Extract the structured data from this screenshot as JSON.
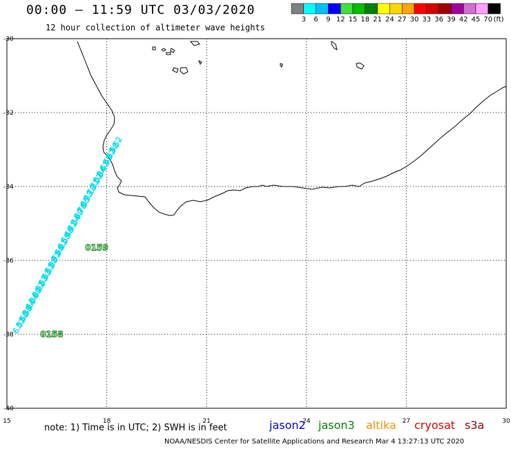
{
  "header": {
    "title": "00:00 – 11:59 UTC 03/03/2020",
    "subtitle": "12 hour collection of altimeter wave heights"
  },
  "colorbar": {
    "colors": [
      "#808080",
      "#00ffff",
      "#00bfff",
      "#0000ff",
      "#40e040",
      "#00c000",
      "#008000",
      "#ffff00",
      "#ffd700",
      "#ffa500",
      "#ff0000",
      "#d40000",
      "#a00000",
      "#a000a0",
      "#d070d0",
      "#ffa0ff",
      "#000000"
    ],
    "ticks": [
      "3",
      "6",
      "9",
      "12",
      "15",
      "18",
      "21",
      "24",
      "27",
      "30",
      "33",
      "36",
      "39",
      "42",
      "45",
      "70"
    ],
    "unit": "(ft)"
  },
  "axes": {
    "x_ticks": [
      {
        "lon": 15,
        "label": "15"
      },
      {
        "lon": 18,
        "label": "18"
      },
      {
        "lon": 21,
        "label": "21"
      },
      {
        "lon": 24,
        "label": "24"
      },
      {
        "lon": 27,
        "label": "27"
      },
      {
        "lon": 30,
        "label": "30"
      }
    ],
    "y_ticks": [
      {
        "lat": -30,
        "label": "-30"
      },
      {
        "lat": -32,
        "label": "-32"
      },
      {
        "lat": -34,
        "label": "-34"
      },
      {
        "lat": -36,
        "label": "-36"
      },
      {
        "lat": -38,
        "label": "-38"
      },
      {
        "lat": -40,
        "label": "-40"
      }
    ],
    "lon_range": [
      15,
      30
    ],
    "lat_range": [
      -40,
      -30
    ]
  },
  "track": {
    "color": "#00d8e8",
    "labels": [
      "6.07",
      "5.66",
      "5.38",
      "5.24",
      "6.04",
      "5.39",
      "6.02",
      "5.63",
      "5.83",
      "5.51",
      "5.86",
      "5.72",
      "5.96",
      "6.21",
      "6.55",
      "6.48",
      "6.71",
      "6.34",
      "6.89",
      "6.76",
      "7.05",
      "6.93",
      "7.18",
      "7.31",
      "7.02",
      "6.84",
      "6.61",
      "6.45",
      "6.37",
      "5.98",
      "5.52"
    ],
    "times": [
      {
        "text": "0158",
        "color": "#008000",
        "lon": 16.0,
        "lat": -38.0
      },
      {
        "text": "0159",
        "color": "#008000",
        "lon": 17.35,
        "lat": -35.65
      }
    ]
  },
  "legend": {
    "note": "note: 1) Time is in UTC; 2) SWH is in feet",
    "satellites": [
      {
        "name": "jason2",
        "color": "#0000cc"
      },
      {
        "name": "jason3",
        "color": "#008000"
      },
      {
        "name": "altika",
        "color": "#ff8c00"
      },
      {
        "name": "cryosat",
        "color": "#dd0000"
      },
      {
        "name": "s3a",
        "color": "#8b0000"
      }
    ]
  },
  "footer": "NOAA/NESDIS Center for Satellite Applications and Research    Mar  4 13:27:13 UTC 2020"
}
